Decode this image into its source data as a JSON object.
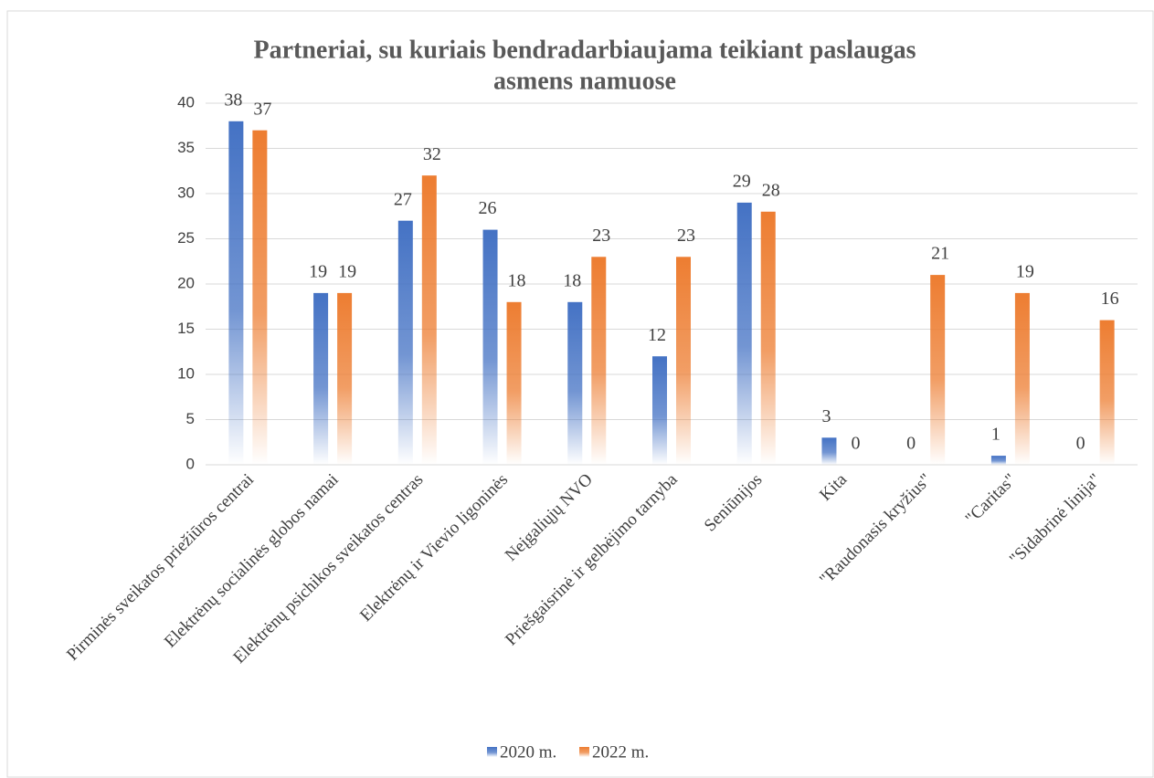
{
  "chart_data": {
    "type": "bar",
    "title": [
      "Partneriai, su kuriais bendradarbiaujama teikiant paslaugas",
      "asmens namuose"
    ],
    "categories": [
      "Pirminės sveikatos priežiūros centrai",
      "Elektrėnų socialinės globos namai",
      "Elektrėnų psichikos sveikatos centras",
      "Elektrėnų ir Vievio ligoninės",
      "Neįgaliųjų NVO",
      "Priešgaisrinė ir gelbėjimo tarnyba",
      "Seniūnijos",
      "Kita",
      "\"Raudonasis kryžius\"",
      "\"Caritas\"",
      "\"Sidabrinė linija\""
    ],
    "series": [
      {
        "name": "2020 m.",
        "color": "#4472c4",
        "values": [
          38,
          19,
          27,
          26,
          18,
          12,
          29,
          3,
          0,
          1,
          0
        ]
      },
      {
        "name": "2022 m.",
        "color": "#ed7d31",
        "values": [
          37,
          19,
          32,
          18,
          23,
          23,
          28,
          0,
          21,
          19,
          16
        ]
      }
    ],
    "ylim": [
      0,
      40
    ],
    "yticks": [
      0,
      5,
      10,
      15,
      20,
      25,
      30,
      35,
      40
    ],
    "grid": true,
    "legend": "bottom"
  }
}
